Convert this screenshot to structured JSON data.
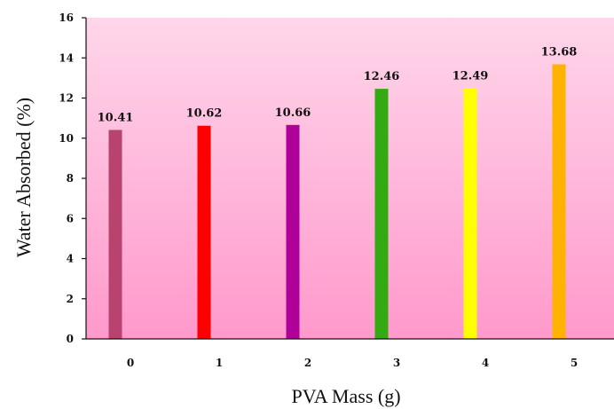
{
  "chart_data": {
    "type": "bar",
    "title": "",
    "xlabel": "PVA Mass (g)",
    "ylabel": "Water Absorbed (%)",
    "categories": [
      "0",
      "1",
      "2",
      "3",
      "4",
      "5"
    ],
    "values": [
      10.41,
      10.62,
      10.66,
      12.46,
      12.49,
      13.68
    ],
    "data_labels": [
      "10.41",
      "10.62",
      "10.66",
      "12.46",
      "12.49",
      "13.68"
    ],
    "bar_colors": [
      "#b8436e",
      "#ff0000",
      "#b0009a",
      "#33aa11",
      "#ffff00",
      "#ffb300"
    ],
    "ylim": [
      0,
      16
    ],
    "yticks": [
      "0",
      "2",
      "4",
      "6",
      "8",
      "10",
      "12",
      "14",
      "16"
    ],
    "grid": false,
    "legend": "none",
    "background": {
      "gradient_top": "#ffd6ea",
      "gradient_bottom": "#ff99cc"
    }
  }
}
